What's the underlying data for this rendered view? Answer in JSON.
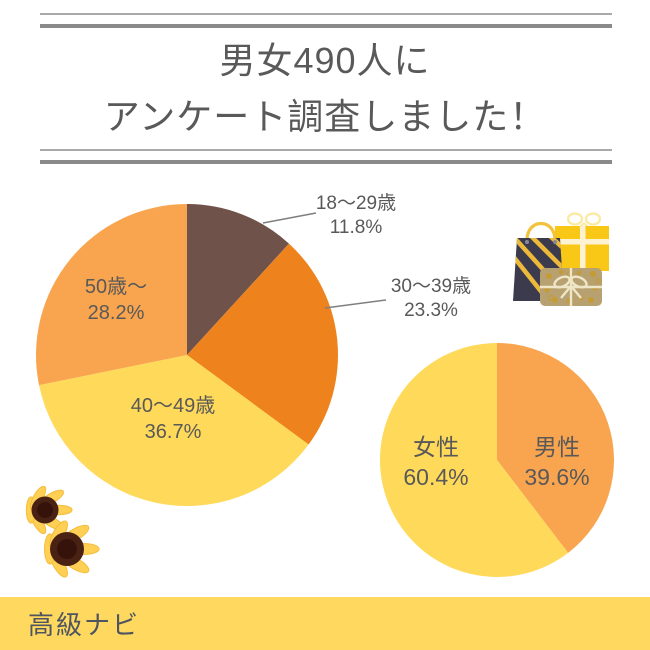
{
  "title": {
    "line1": "男女490人に",
    "line2": "アンケート調査しました！"
  },
  "footer": {
    "brand": "高級ナビ"
  },
  "decorations": {
    "gift_icon": "shopping-bag-and-gift-boxes",
    "flower_icon": "sunflowers"
  },
  "colors": {
    "slice_brown": "#6F5249",
    "slice_orange": "#EE831D",
    "slice_yellow": "#FFD95A",
    "slice_light_orange": "#F9A54F",
    "label_text": "#595959",
    "leader_line": "#7F7F7F",
    "rule_gray": "#8A8A8A",
    "footer_bg": "#FFD95F"
  },
  "chart_data": [
    {
      "id": "pie-age",
      "type": "pie",
      "title": "年代別回答者割合",
      "start_angle": "12-oclock-clockwise",
      "legend_position": "none",
      "slices": [
        {
          "label": "18〜29歳",
          "pct_label": "11.8%",
          "value": 11.8,
          "color": "#6F5249",
          "label_position": "outside"
        },
        {
          "label": "30〜39歳",
          "pct_label": "23.3%",
          "value": 23.3,
          "color": "#EE831D",
          "label_position": "outside"
        },
        {
          "label": "40〜49歳",
          "pct_label": "36.7%",
          "value": 36.7,
          "color": "#FFD95A",
          "label_position": "inside"
        },
        {
          "label": "50歳〜",
          "pct_label": "28.2%",
          "value": 28.2,
          "color": "#F9A54F",
          "label_position": "inside"
        }
      ]
    },
    {
      "id": "pie-gender",
      "type": "pie",
      "title": "男女別回答者割合",
      "start_angle": "12-oclock-clockwise",
      "legend_position": "none",
      "slices": [
        {
          "label": "男性",
          "pct_label": "39.6%",
          "value": 39.6,
          "color": "#F9A54F",
          "label_position": "inside"
        },
        {
          "label": "女性",
          "pct_label": "60.4%",
          "value": 60.4,
          "color": "#FFD95A",
          "label_position": "inside"
        }
      ]
    }
  ]
}
